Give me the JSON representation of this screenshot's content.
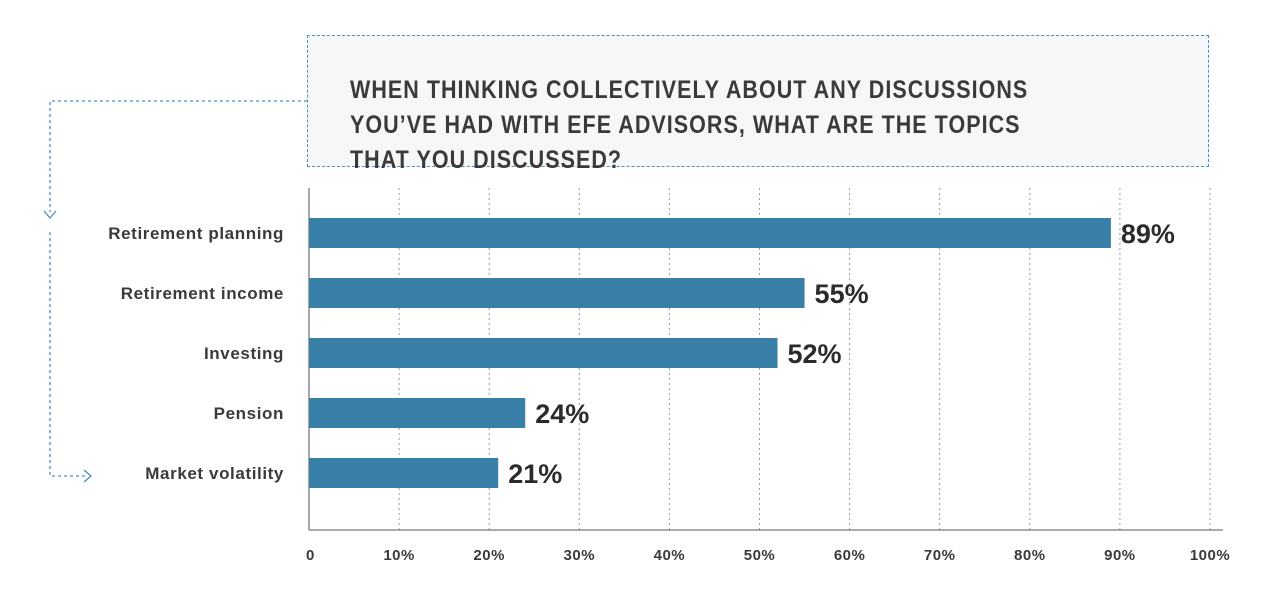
{
  "question": "WHEN THINKING COLLECTIVELY ABOUT ANY DISCUSSIONS YOU’VE HAD WITH EFE ADVISORS, WHAT ARE THE TOPICS THAT YOU DISCUSSED?",
  "colors": {
    "bar": "#3880a8",
    "box_border": "#4a90b8",
    "box_background": "#f5f7f8",
    "gridline": "#9a9a9a",
    "axis": "#7a7a7a",
    "text": "#3a3a3a"
  },
  "chart_data": {
    "type": "bar",
    "orientation": "horizontal",
    "title": "",
    "xlabel": "",
    "ylabel": "",
    "categories": [
      "Retirement planning",
      "Retirement income",
      "Investing",
      "Pension",
      "Market volatility"
    ],
    "values": [
      89,
      55,
      52,
      24,
      21
    ],
    "value_labels": [
      "89%",
      "55%",
      "52%",
      "24%",
      "21%"
    ],
    "xlim": [
      0,
      100
    ],
    "xticks": [
      0,
      10,
      20,
      30,
      40,
      50,
      60,
      70,
      80,
      90,
      100
    ],
    "xtick_labels": [
      "0",
      "10%",
      "20%",
      "30%",
      "40%",
      "50%",
      "60%",
      "70%",
      "80%",
      "90%",
      "100%"
    ],
    "grid": true
  }
}
